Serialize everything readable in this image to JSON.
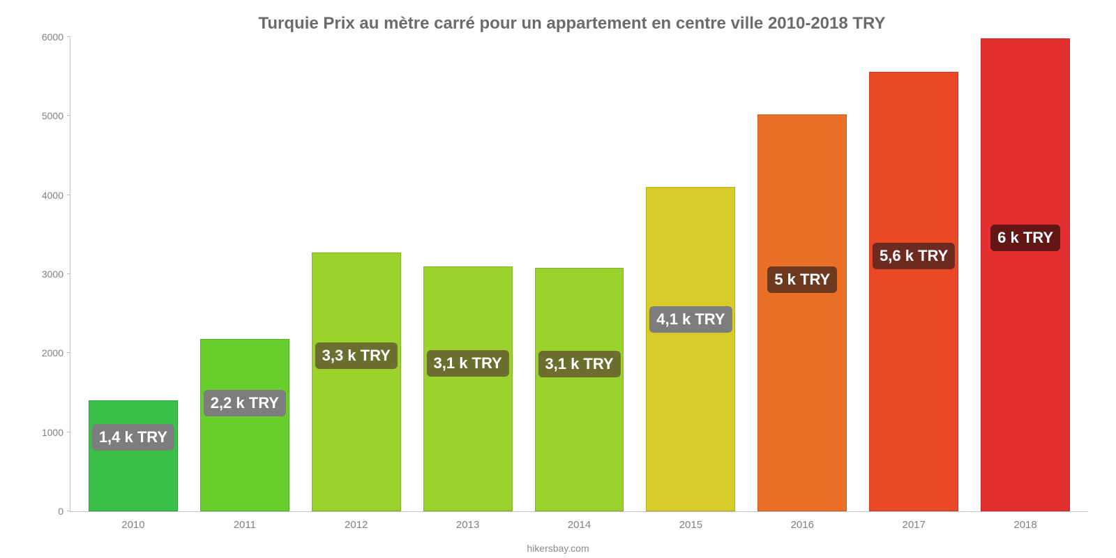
{
  "chart": {
    "type": "bar",
    "title": "Turquie Prix au mètre carré pour un appartement en centre ville 2010-2018 TRY",
    "title_fontsize": 24,
    "title_color": "#6b6b6b",
    "source": "hikersbay.com",
    "source_color": "#8a8a8a",
    "background_color": "#ffffff",
    "axis_color": "#c0c0c0",
    "tick_label_color": "#808080",
    "tick_fontsize": 14,
    "ylim": [
      0,
      6000
    ],
    "yticks": [
      0,
      1000,
      2000,
      3000,
      4000,
      5000,
      6000
    ],
    "categories": [
      "2010",
      "2011",
      "2012",
      "2013",
      "2014",
      "2015",
      "2016",
      "2017",
      "2018"
    ],
    "values": [
      1400,
      2180,
      3270,
      3100,
      3080,
      4100,
      5020,
      5560,
      5980
    ],
    "value_labels": [
      "1,4 k TRY",
      "2,2 k TRY",
      "3,3 k TRY",
      "3,1 k TRY",
      "3,1 k TRY",
      "4,1 k TRY",
      "5 k TRY",
      "5,6 k TRY",
      "6 k TRY"
    ],
    "bar_colors": [
      "#38c048",
      "#68ce2e",
      "#9cd22e",
      "#9cd22e",
      "#9cd22e",
      "#d9cc2a",
      "#ea6f27",
      "#e94927",
      "#e32f2f"
    ],
    "label_bg_colors": [
      "#7d7d7d",
      "#7d7d7d",
      "#6c6e2f",
      "#6c6e2f",
      "#6c6e2f",
      "#7d7d7d",
      "#6d3a20",
      "#6d2a20",
      "#621616"
    ],
    "label_text_color": "#ffffff",
    "label_fontsize": 22,
    "bar_width_ratio": 0.8,
    "bar_border_color": "rgba(0,0,0,0.15)"
  }
}
